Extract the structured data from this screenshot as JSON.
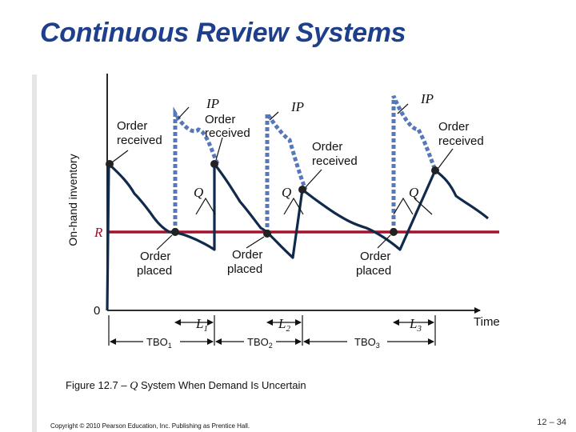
{
  "title": "Continuous Review Systems",
  "axis": {
    "y_label": "On-hand inventory",
    "x_label": "Time",
    "origin_label": "0",
    "reorder_level_label": "R",
    "reorder_color": "#a5112a"
  },
  "annotations": {
    "ip": [
      "IP",
      "IP",
      "IP"
    ],
    "order_received": [
      [
        "Order",
        "received"
      ],
      [
        "Order",
        "received"
      ],
      [
        "Order",
        "received"
      ],
      [
        "Order",
        "received"
      ]
    ],
    "order_placed": [
      [
        "Order",
        "placed"
      ],
      [
        "Order",
        "placed"
      ],
      [
        "Order",
        "placed"
      ]
    ],
    "q_label": "Q",
    "lead_times": [
      {
        "base": "L",
        "sub": "1"
      },
      {
        "base": "L",
        "sub": "2"
      },
      {
        "base": "L",
        "sub": "3"
      }
    ],
    "tbo": [
      {
        "base": "TBO",
        "sub": "1"
      },
      {
        "base": "TBO",
        "sub": "2"
      },
      {
        "base": "TBO",
        "sub": "3"
      }
    ]
  },
  "caption": {
    "prefix": "Figure 12.7 –",
    "q": "Q",
    "suffix": "System When Demand Is Uncertain"
  },
  "footer": {
    "copyright": "Copyright © 2010 Pearson Education, Inc. Publishing as Prentice Hall.",
    "page": "12 – 34"
  },
  "colors": {
    "title": "#1e3f8c",
    "ip_dotted": "#5577bb",
    "inventory_line": "#0f2a4a"
  }
}
